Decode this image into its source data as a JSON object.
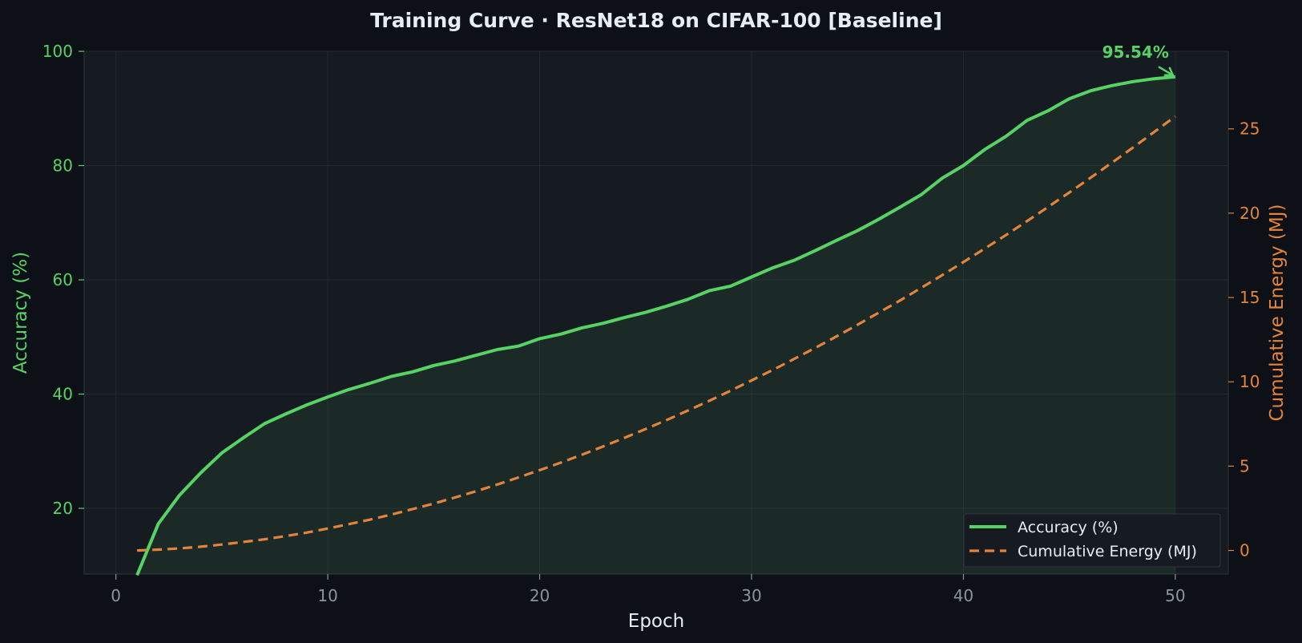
{
  "chart_data": {
    "type": "line",
    "title": "Training Curve  ·  ResNet18 on CIFAR-100  [Baseline]",
    "xlabel": "Epoch",
    "ylabel_left": "Accuracy (%)",
    "ylabel_right": "Cumulative Energy (MJ)",
    "xlim": [
      -1.5,
      52.5
    ],
    "ylim_left": [
      8.5,
      100
    ],
    "ylim_right": [
      -1.4,
      29.6
    ],
    "x_ticks": [
      0,
      10,
      20,
      30,
      40,
      50
    ],
    "y_ticks_left": [
      20,
      40,
      60,
      80,
      100
    ],
    "y_ticks_right": [
      0,
      5,
      10,
      15,
      20,
      25
    ],
    "grid": true,
    "legend": "bottom-right",
    "x": [
      1,
      2,
      3,
      4,
      5,
      6,
      7,
      8,
      9,
      10,
      11,
      12,
      13,
      14,
      15,
      16,
      17,
      18,
      19,
      20,
      21,
      22,
      23,
      24,
      25,
      26,
      27,
      28,
      29,
      30,
      31,
      32,
      33,
      34,
      35,
      36,
      37,
      38,
      39,
      40,
      41,
      42,
      43,
      44,
      45,
      46,
      47,
      48,
      49,
      50
    ],
    "series": [
      {
        "name": "Accuracy (%)",
        "axis": "left",
        "color": "#56d364",
        "style": "solid",
        "values": [
          8.3,
          17.3,
          22.3,
          26.2,
          29.7,
          32.3,
          34.8,
          36.5,
          38.1,
          39.5,
          40.8,
          41.9,
          43.1,
          43.9,
          45.0,
          45.8,
          46.8,
          47.8,
          48.4,
          49.7,
          50.5,
          51.6,
          52.4,
          53.4,
          54.3,
          55.4,
          56.6,
          58.1,
          58.9,
          60.5,
          62.1,
          63.4,
          65.1,
          66.9,
          68.6,
          70.6,
          72.7,
          74.9,
          77.8,
          80.0,
          82.8,
          85.1,
          87.9,
          89.6,
          91.7,
          93.1,
          94.0,
          94.7,
          95.2,
          95.54
        ],
        "fill": true
      },
      {
        "name": "Cumulative Energy (MJ)",
        "axis": "right",
        "color": "#e3843a",
        "style": "dashed",
        "values": [
          0.0,
          0.05,
          0.12,
          0.22,
          0.35,
          0.5,
          0.66,
          0.85,
          1.06,
          1.3,
          1.56,
          1.83,
          2.13,
          2.45,
          2.78,
          3.14,
          3.51,
          3.91,
          4.33,
          4.76,
          5.21,
          5.68,
          6.17,
          6.68,
          7.2,
          7.74,
          8.3,
          8.87,
          9.47,
          10.08,
          10.7,
          11.35,
          12.01,
          12.69,
          13.38,
          14.1,
          14.82,
          15.57,
          16.33,
          17.1,
          17.9,
          18.7,
          19.53,
          20.37,
          21.23,
          22.1,
          22.99,
          23.89,
          24.81,
          25.74
        ]
      }
    ],
    "annotation": {
      "text": "95.54%",
      "x": 50,
      "y": 95.54
    }
  }
}
